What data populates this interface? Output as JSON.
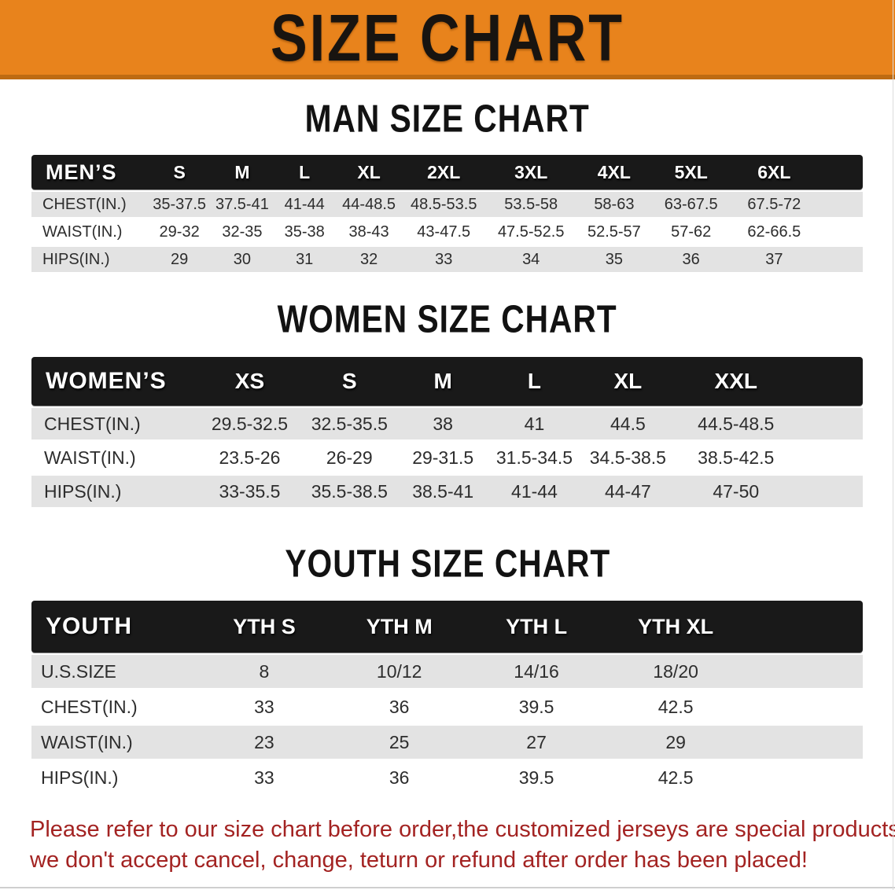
{
  "banner": {
    "title": "SIZE CHART"
  },
  "colors": {
    "banner_bg": "#E8831C",
    "banner_border": "#BE6B12",
    "banner_text": "#181410",
    "table_header_bg": "#191919",
    "table_header_text": "#FFFFFF",
    "row_stripe": "#E3E3E3",
    "row_white": "#FFFFFF",
    "body_text": "#2D2D2D",
    "footer_text": "#A32322"
  },
  "footer": {
    "line1": "Please refer to our size chart before order,the customized jerseys are special products,",
    "line2": "we don't accept cancel, change, teturn or refund after order has been placed!"
  },
  "chart_data": [
    {
      "type": "table",
      "title": "MAN SIZE CHART",
      "header_label": "MEN’S",
      "columns": [
        "S",
        "M",
        "L",
        "XL",
        "2XL",
        "3XL",
        "4XL",
        "5XL",
        "6XL"
      ],
      "row_labels": [
        "CHEST(IN.)",
        "WAIST(IN.)",
        "HIPS(IN.)"
      ],
      "rows": [
        [
          "35-37.5",
          "37.5-41",
          "41-44",
          "44-48.5",
          "48.5-53.5",
          "53.5-58",
          "58-63",
          "63-67.5",
          "67.5-72"
        ],
        [
          "29-32",
          "32-35",
          "35-38",
          "38-43",
          "43-47.5",
          "47.5-52.5",
          "52.5-57",
          "57-62",
          "62-66.5"
        ],
        [
          "29",
          "30",
          "31",
          "32",
          "33",
          "34",
          "35",
          "36",
          "37"
        ]
      ]
    },
    {
      "type": "table",
      "title": "WOMEN SIZE CHART",
      "header_label": "WOMEN’S",
      "columns": [
        "XS",
        "S",
        "M",
        "L",
        "XL",
        "XXL"
      ],
      "row_labels": [
        "CHEST(IN.)",
        "WAIST(IN.)",
        "HIPS(IN.)"
      ],
      "rows": [
        [
          "29.5-32.5",
          "32.5-35.5",
          "38",
          "41",
          "44.5",
          "44.5-48.5"
        ],
        [
          "23.5-26",
          "26-29",
          "29-31.5",
          "31.5-34.5",
          "34.5-38.5",
          "38.5-42.5"
        ],
        [
          "33-35.5",
          "35.5-38.5",
          "38.5-41",
          "41-44",
          "44-47",
          "47-50"
        ]
      ]
    },
    {
      "type": "table",
      "title": "YOUTH SIZE CHART",
      "header_label": "YOUTH",
      "columns": [
        "YTH S",
        "YTH M",
        "YTH L",
        "YTH XL"
      ],
      "row_labels": [
        "U.S.SIZE",
        "CHEST(IN.)",
        "WAIST(IN.)",
        "HIPS(IN.)"
      ],
      "rows": [
        [
          "8",
          "10/12",
          "14/16",
          "18/20"
        ],
        [
          "33",
          "36",
          "39.5",
          "42.5"
        ],
        [
          "23",
          "25",
          "27",
          "29"
        ],
        [
          "33",
          "36",
          "39.5",
          "42.5"
        ]
      ]
    }
  ]
}
